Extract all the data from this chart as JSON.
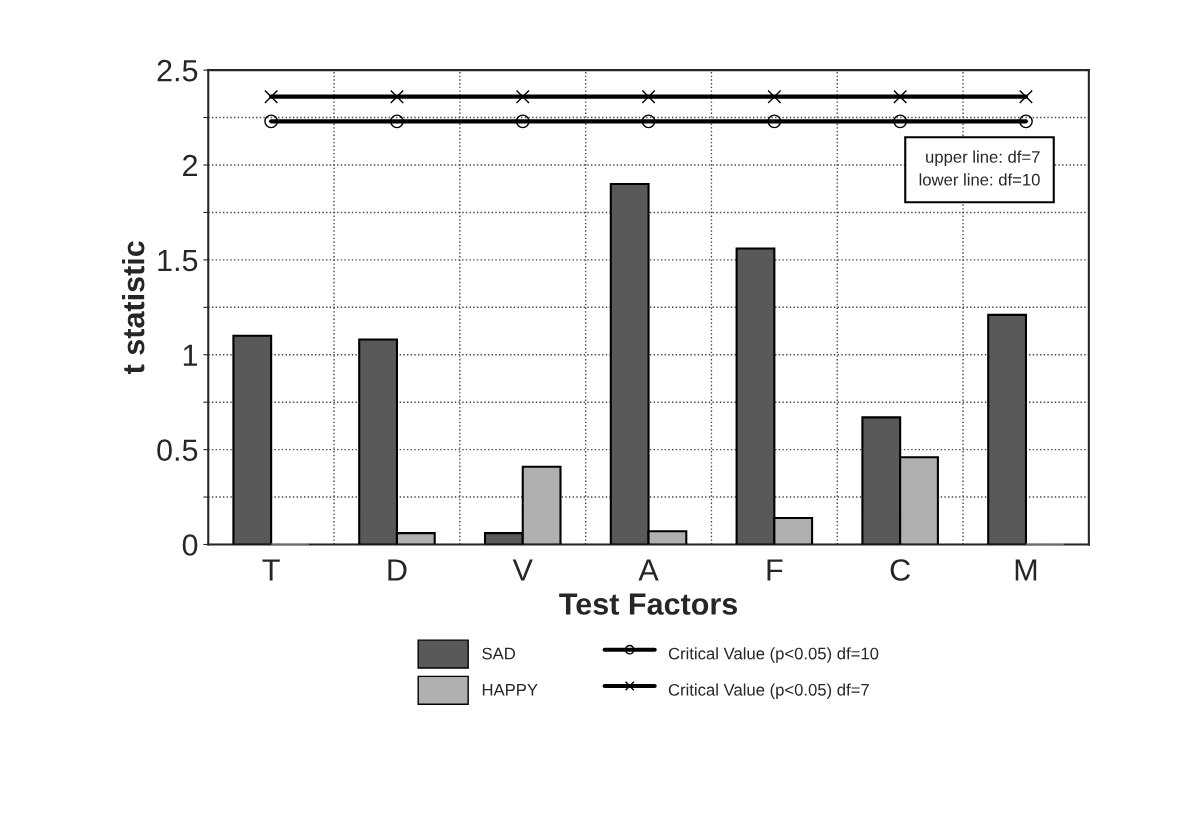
{
  "chart_data": {
    "type": "bar",
    "xlabel": "Test Factors",
    "ylabel": "t statistic",
    "categories": [
      "T",
      "D",
      "V",
      "A",
      "F",
      "C",
      "M"
    ],
    "series": [
      {
        "name": "SAD",
        "color": "#595959",
        "values": [
          1.1,
          1.08,
          0.06,
          1.9,
          1.56,
          0.67,
          1.21
        ]
      },
      {
        "name": "HAPPY",
        "color": "#b0b0b0",
        "values": [
          0,
          0.06,
          0.41,
          0.07,
          0.14,
          0.46,
          0
        ]
      },
      {
        "name": "Critical Value (p<0.05) df=10",
        "type": "line",
        "color": "#000000",
        "marker": "circle",
        "values": [
          2.23,
          2.23,
          2.23,
          2.23,
          2.23,
          2.23,
          2.23
        ]
      },
      {
        "name": "Critical Value (p<0.05) df=7",
        "type": "line",
        "color": "#000000",
        "marker": "cross",
        "values": [
          2.36,
          2.36,
          2.36,
          2.36,
          2.36,
          2.36,
          2.36
        ]
      }
    ],
    "ylim": [
      0,
      2.5
    ],
    "yticks": [
      0,
      {
        "value": 0.25,
        "label": null
      },
      0.5,
      {
        "value": 0.75,
        "label": null
      },
      1,
      {
        "value": 1.25,
        "label": null
      },
      1.5,
      {
        "value": 1.75,
        "label": null
      },
      2,
      {
        "value": 2.25,
        "label": null
      },
      2.5
    ],
    "grid": true,
    "legend": "bottom",
    "annotations": [
      "upper line: df=7\nlower line: df=10"
    ]
  }
}
